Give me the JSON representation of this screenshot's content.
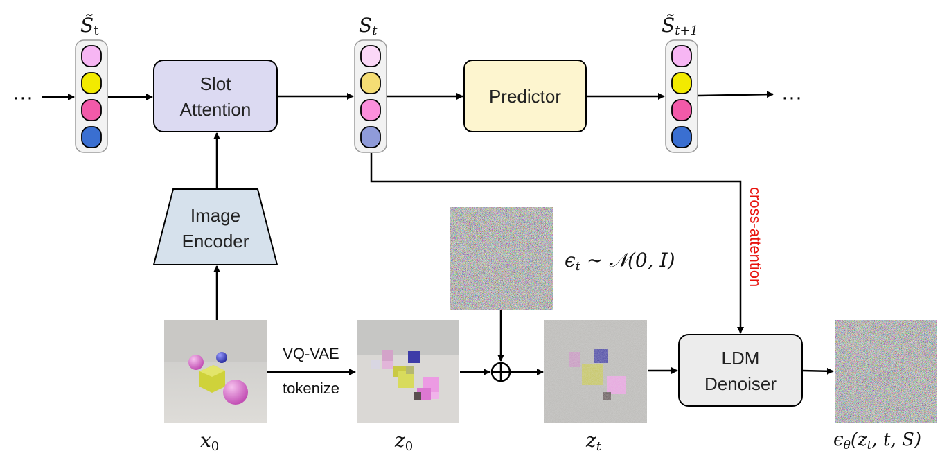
{
  "labels": {
    "slots_in": "S̃",
    "slots_in_sub": "t",
    "slots_mid": "S",
    "slots_mid_sub": "t",
    "slots_out": "S̃",
    "slots_out_sub": "t+1",
    "ellipsis_left": "···",
    "ellipsis_right": "···",
    "x0": "x",
    "x0_sub": "0",
    "z0": "z",
    "z0_sub": "0",
    "zt": "z",
    "zt_sub": "t",
    "noise_eq": "ϵ",
    "noise_eq_sub": "t",
    "noise_eq_rest": " ~ 𝒩(0, I)",
    "output": "ϵ",
    "output_sub": "θ",
    "output_rest": "(z",
    "output_rest_sub": "t",
    "output_rest_end": ", t, S)",
    "vqvae": "VQ-VAE",
    "tokenize": "tokenize",
    "cross_attention": "cross-attention",
    "plus": "⊕"
  },
  "boxes": {
    "slot_attention": [
      "Slot",
      "Attention"
    ],
    "predictor": "Predictor",
    "image_encoder": [
      "Image",
      "Encoder"
    ],
    "ldm_denoiser": [
      "LDM",
      "Denoiser"
    ]
  },
  "slot_colors": {
    "input": [
      "#f7b6f3",
      "#f2ea00",
      "#f25aa9",
      "#3a6fd1"
    ],
    "middle": [
      "#fbd8f7",
      "#f5dd74",
      "#fb8fdc",
      "#8f9bd9"
    ],
    "output": [
      "#f7b6f3",
      "#f2ea00",
      "#f25aa9",
      "#3a6fd1"
    ]
  },
  "colors": {
    "slot_attention_fill": "#dcdaf2",
    "predictor_fill": "#fdf5cf",
    "encoder_fill": "#d6e1ec",
    "denoiser_fill": "#ececec",
    "cross_attention_text": "#e8120c"
  }
}
